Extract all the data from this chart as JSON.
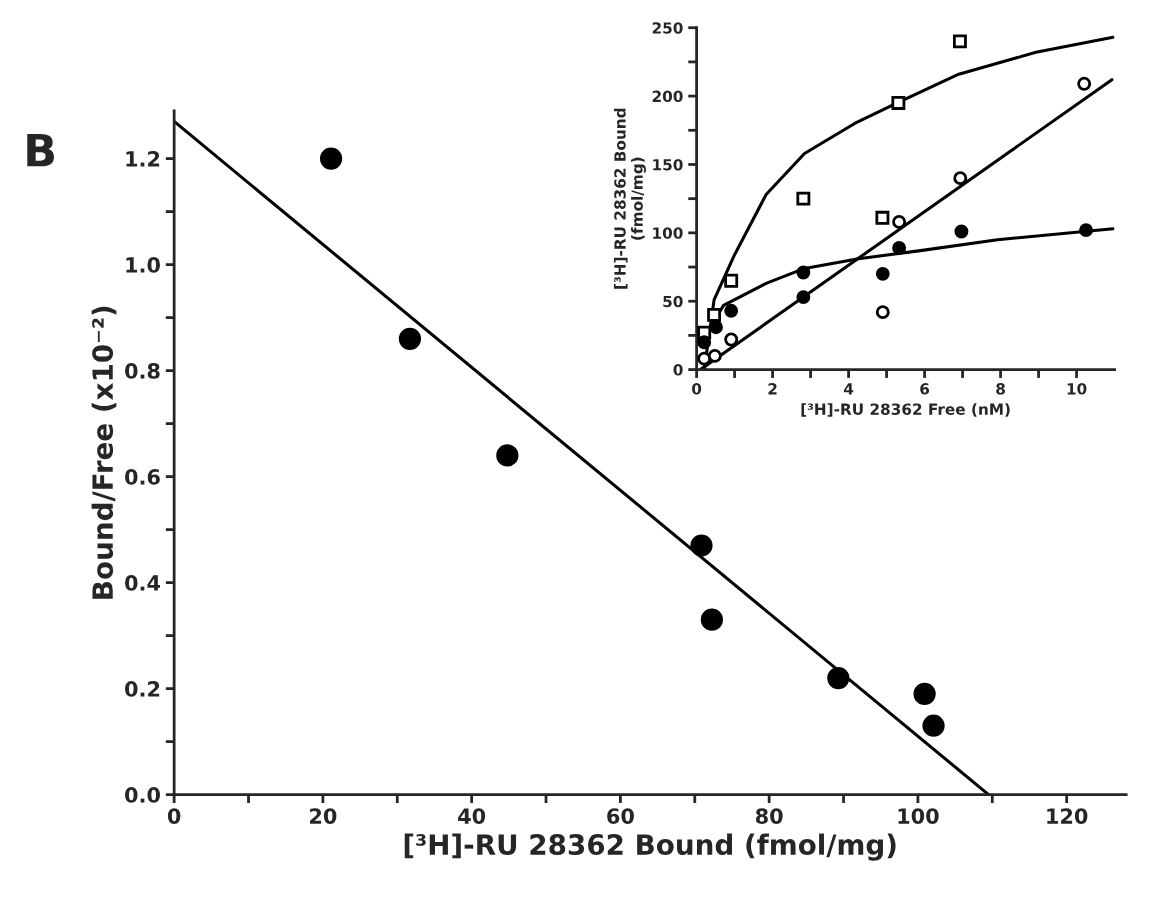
{
  "chart_data": [
    {
      "type": "scatter",
      "xlabel": "[³H]-RU 28362 Bound (fmol/mg)",
      "ylabel": "Bound/Free (x10⁻²)",
      "annotations": [
        "B"
      ],
      "xlim": [
        0,
        128
      ],
      "ylim": [
        0,
        1.29
      ],
      "xticks": [
        0,
        {
          "value": 10,
          "label": null
        },
        20,
        {
          "value": 30,
          "label": null
        },
        40,
        {
          "value": 50,
          "label": null
        },
        60,
        {
          "value": 70,
          "label": null
        },
        80,
        {
          "value": 90,
          "label": null
        },
        100,
        {
          "value": 110,
          "label": null
        },
        120
      ],
      "yticks": [
        {
          "value": 0,
          "label": "0.0"
        },
        {
          "value": 0.1,
          "label": null
        },
        {
          "value": 0.2,
          "label": "0.2"
        },
        {
          "value": 0.3,
          "label": null
        },
        {
          "value": 0.4,
          "label": "0.4"
        },
        {
          "value": 0.5,
          "label": null
        },
        {
          "value": 0.6,
          "label": "0.6"
        },
        {
          "value": 0.7,
          "label": null
        },
        {
          "value": 0.8,
          "label": "0.8"
        },
        {
          "value": 0.9,
          "label": null
        },
        {
          "value": 1.0,
          "label": "1.0"
        },
        {
          "value": 1.1,
          "label": null
        },
        {
          "value": 1.2,
          "label": "1.2"
        }
      ],
      "series": [
        {
          "marker": "circle",
          "color": "#000000",
          "x": [
            21.1,
            31.7,
            44.8,
            70.9,
            72.3,
            89.3,
            100.9,
            102.1
          ],
          "values": [
            1.2,
            0.86,
            0.64,
            0.47,
            0.33,
            0.22,
            0.19,
            0.13
          ]
        },
        {
          "type": "line",
          "color": "#000000",
          "x": [
            0,
            109.5
          ],
          "values": [
            1.27,
            0
          ]
        }
      ]
    },
    {
      "type": "scatter",
      "xlabel": "[³H]-RU 28362 Free (nM)",
      "ylabel": "[³H]-RU 28362 Bound\n(fmol/mg)",
      "xlim": [
        0,
        11
      ],
      "ylim": [
        0,
        250
      ],
      "xticks": [
        0,
        {
          "value": 1,
          "label": null
        },
        2,
        {
          "value": 3,
          "label": null
        },
        4,
        {
          "value": 5,
          "label": null
        },
        6,
        {
          "value": 7,
          "label": null
        },
        8,
        {
          "value": 9,
          "label": null
        },
        10
      ],
      "yticks": [
        0,
        {
          "value": 25,
          "label": null
        },
        50,
        {
          "value": 75,
          "label": null
        },
        100,
        {
          "value": 125,
          "label": null
        },
        150,
        {
          "value": 175,
          "label": null
        },
        200,
        {
          "value": 225,
          "label": null
        },
        250
      ],
      "series": [
        {
          "marker": "square",
          "color": "#ffffff",
          "x": [
            0.2,
            0.46,
            0.91,
            2.81,
            4.89,
            5.31,
            6.93
          ],
          "values": [
            27,
            40,
            65,
            125,
            111,
            195,
            240
          ]
        },
        {
          "marker": "circle",
          "color": "#ffffff",
          "x": [
            0.2,
            0.48,
            0.91,
            4.9,
            5.33,
            6.94,
            10.2
          ],
          "values": [
            8,
            10,
            22,
            42,
            108,
            140,
            209
          ]
        },
        {
          "marker": "circle",
          "color": "#000000",
          "x": [
            0.2,
            0.51,
            0.91,
            2.81,
            2.81,
            4.9,
            5.33,
            6.97,
            10.25
          ],
          "values": [
            20,
            31,
            43,
            71,
            53,
            70,
            89,
            101,
            102
          ]
        },
        {
          "type": "line",
          "color": "#000000",
          "x": [
            0.2,
            0.46,
            1.0,
            1.83,
            2.84,
            4.16,
            5.28,
            6.9,
            8.93,
            10.96
          ],
          "values": [
            0,
            51,
            84,
            128,
            158,
            180,
            195,
            216,
            232,
            243
          ]
        },
        {
          "type": "line",
          "color": "#000000",
          "x": [
            0.1,
            10.93
          ],
          "values": [
            0,
            212
          ]
        },
        {
          "type": "line",
          "color": "#000000",
          "x": [
            0.2,
            0.71,
            1.83,
            2.84,
            4.26,
            5.89,
            7.92,
            10.96
          ],
          "values": [
            23,
            47,
            63,
            74,
            81,
            87,
            95,
            103
          ]
        }
      ]
    }
  ]
}
